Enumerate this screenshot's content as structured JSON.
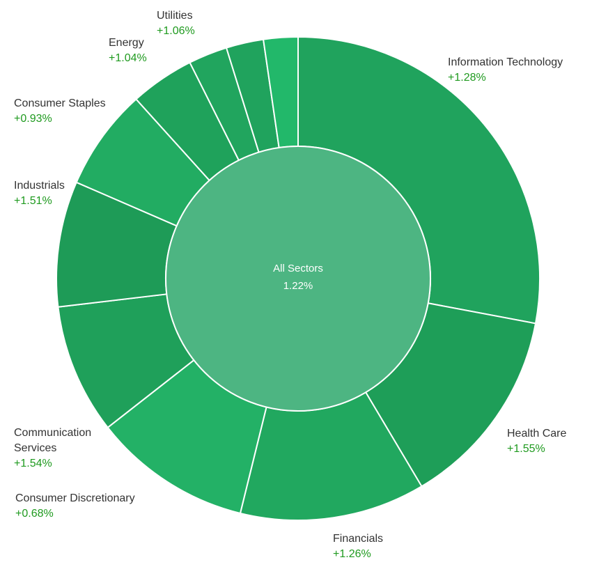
{
  "chart_data": {
    "type": "sunburst",
    "center": {
      "label": "All Sectors",
      "value": 1.22,
      "value_label": "1.22%",
      "color": "#4db582"
    },
    "categories": [
      "Information Technology",
      "Health Care",
      "Financials",
      "Consumer Discretionary",
      "Communication Services",
      "Industrials",
      "Consumer Staples",
      "Energy",
      null,
      null,
      "Utilities"
    ],
    "values": [
      28,
      13.5,
      12.4,
      10.6,
      8.7,
      8.4,
      6.8,
      4.3,
      2.6,
      2.5,
      2.3
    ],
    "changes": [
      1.28,
      1.55,
      1.26,
      0.68,
      1.54,
      1.51,
      0.93,
      1.04,
      null,
      null,
      1.06
    ],
    "change_labels": [
      "+1.28%",
      "+1.55%",
      "+1.26%",
      "+0.68%",
      "+1.54%",
      "+1.51%",
      "+0.93%",
      "+1.04%",
      null,
      null,
      "+1.06%"
    ],
    "colors": [
      "#20a35d",
      "#1e9e58",
      "#21a85f",
      "#23b166",
      "#1fa05a",
      "#1e9b57",
      "#22ac62",
      "#1fa25b",
      "#21a55e",
      "#20a35d",
      "#22b86a"
    ]
  }
}
